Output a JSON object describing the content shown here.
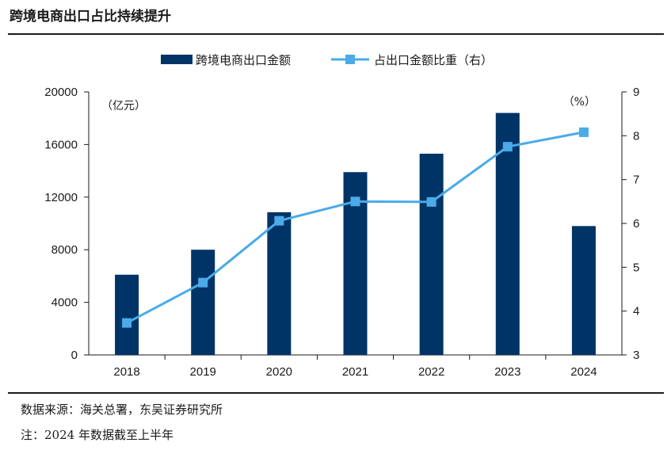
{
  "title": "跨境电商出口占比持续提升",
  "source": "数据来源：海关总署，东吴证券研究所",
  "note": "注：2024 年数据截至上半年",
  "chart_data": {
    "type": "bar+line",
    "categories": [
      "2018",
      "2019",
      "2020",
      "2021",
      "2022",
      "2023",
      "2024"
    ],
    "series": [
      {
        "name": "跨境电商出口金额",
        "type": "bar",
        "axis": "left",
        "color": "#003366",
        "values": [
          6100,
          8000,
          10850,
          13900,
          15300,
          18400,
          9800
        ]
      },
      {
        "name": "占出口金额比重（右）",
        "type": "line",
        "axis": "right",
        "color": "#4aabe8",
        "values": [
          3.73,
          4.65,
          6.06,
          6.5,
          6.49,
          7.75,
          8.08
        ]
      }
    ],
    "left_axis": {
      "unit": "（亿元）",
      "min": 0,
      "max": 20000,
      "ticks": [
        "0",
        "4000",
        "8000",
        "12000",
        "16000",
        "20000"
      ]
    },
    "right_axis": {
      "unit": "（%）",
      "min": 3,
      "max": 9,
      "ticks": [
        "3",
        "4",
        "5",
        "6",
        "7",
        "8",
        "9"
      ]
    },
    "legend_position": "top-center",
    "grid": false
  }
}
